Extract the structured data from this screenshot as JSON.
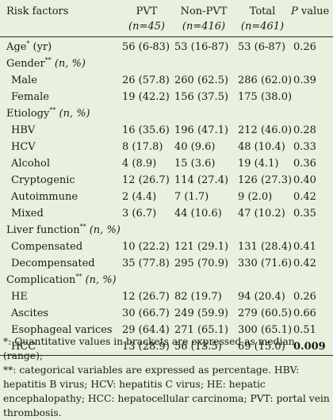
{
  "header": {
    "risk_factors": "Risk factors",
    "pvt_label": "PVT",
    "pvt_n": "(n=45)",
    "nonpvt_label": "Non-PVT",
    "nonpvt_n": "(n=416)",
    "total_label": "Total",
    "total_n": "(n=461)",
    "p_label": "P value"
  },
  "rows": {
    "age": {
      "label": "Age",
      "mark": "*",
      "unit": "(yr)",
      "pvt": "56 (6-83)",
      "nonpvt": "53 (16-87)",
      "total": "53 (6-87)",
      "p": "0.26"
    },
    "gender": {
      "label": "Gender",
      "mark": "**",
      "unit": "(n, %)"
    },
    "male": {
      "label": "Male",
      "pvt": "26 (57.8)",
      "nonpvt": "260 (62.5)",
      "total": "286 (62.0)",
      "p": "0.39"
    },
    "female": {
      "label": "Female",
      "pvt": "19 (42.2)",
      "nonpvt": "156 (37.5)",
      "total": "175 (38.0)",
      "p": ""
    },
    "etiology": {
      "label": "Etiology",
      "mark": "**",
      "unit": "(n, %)"
    },
    "hbv": {
      "label": "HBV",
      "pvt": "16 (35.6)",
      "nonpvt": "196 (47.1)",
      "total": "212 (46.0)",
      "p": "0.28"
    },
    "hcv": {
      "label": "HCV",
      "pvt": "8 (17.8)",
      "nonpvt": "40 (9.6)",
      "total": "48 (10.4)",
      "p": "0.33"
    },
    "alcohol": {
      "label": "Alcohol",
      "pvt": "4 (8.9)",
      "nonpvt": "15 (3.6)",
      "total": "19 (4.1)",
      "p": "0.36"
    },
    "cryptogenic": {
      "label": "Cryptogenic",
      "pvt": "12 (26.7)",
      "nonpvt": "114 (27.4)",
      "total": "126 (27.3)",
      "p": "0.40"
    },
    "autoimmune": {
      "label": "Autoimmune",
      "pvt": "2 (4.4)",
      "nonpvt": "7 (1.7)",
      "total": "9 (2.0)",
      "p": "0.42"
    },
    "mixed": {
      "label": "Mixed",
      "pvt": "3 (6.7)",
      "nonpvt": "44 (10.6)",
      "total": "47 (10.2)",
      "p": "0.35"
    },
    "liver": {
      "label": "Liver function",
      "mark": "**",
      "unit": "(n, %)"
    },
    "compensated": {
      "label": "Compensated",
      "pvt": "10 (22.2)",
      "nonpvt": "121 (29.1)",
      "total": "131 (28.4)",
      "p": "0.41"
    },
    "decompensated": {
      "label": "Decompensated",
      "pvt": "35 (77.8)",
      "nonpvt": "295 (70.9)",
      "total": "330 (71.6)",
      "p": "0.42"
    },
    "complication": {
      "label": "Complication",
      "mark": "**",
      "unit": "(n, %)"
    },
    "he": {
      "label": "HE",
      "pvt": "12 (26.7)",
      "nonpvt": "82 (19.7)",
      "total": "94 (20.4)",
      "p": "0.26"
    },
    "ascites": {
      "label": "Ascites",
      "pvt": "30 (66.7)",
      "nonpvt": "249 (59.9)",
      "total": "279 (60.5)",
      "p": "0.66"
    },
    "varices": {
      "label": "Esophageal varices",
      "pvt": "29 (64.4)",
      "nonpvt": "271 (65.1)",
      "total": "300 (65.1)",
      "p": "0.51"
    },
    "hcc": {
      "label": "HCC",
      "pvt": "13 (28.9)",
      "nonpvt": "56 (13.5)",
      "total": "69 (15.0)",
      "p": "0.009"
    }
  },
  "notes": {
    "note1": "*: Quantitative values in brackets are expressed as median (range);",
    "note2": "**: categorical variables are expressed as percentage. HBV: hepatitis B virus; HCV: hepatitis C virus; HE: hepatic encephalopathy; HCC: hepatocellular carcinoma; PVT: portal vein thrombosis."
  }
}
